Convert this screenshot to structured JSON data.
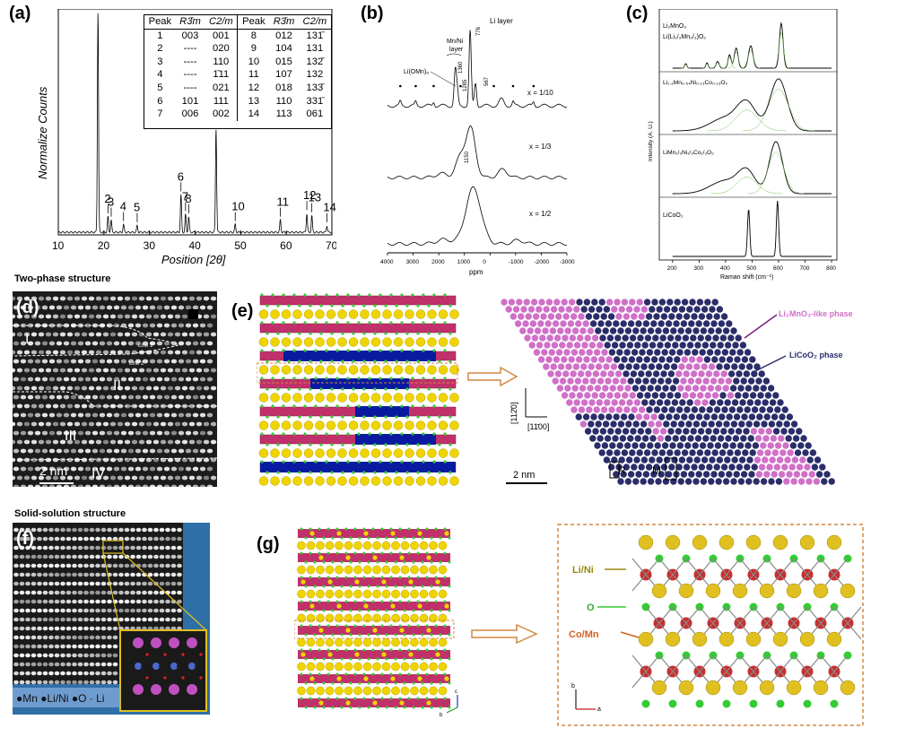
{
  "panel_labels": {
    "a": "(a)",
    "b": "(b)",
    "c": "(c)",
    "d": "(d)",
    "e": "(e)",
    "f": "(f)",
    "g": "(g)"
  },
  "section_titles": {
    "two_phase": "Two-phase structure",
    "solid_solution": "Solid-solution structure"
  },
  "colors": {
    "atom_yellow": "#f0d400",
    "octa_pink": "#c0306a",
    "octa_blue": "#0a1aa0",
    "oxygen_green": "#33cc33",
    "hex_navy": "#2b2d6a",
    "hex_pink": "#d070c8",
    "mn_red": "#c83030",
    "label_olive": "#9a8a10",
    "label_orange": "#d06020"
  },
  "chart_data": [
    {
      "type": "line",
      "panel": "a",
      "xlabel": "Position [2θ]",
      "ylabel": "Normalize Counts",
      "xlim": [
        10,
        70
      ],
      "xticks": [
        "10",
        "20",
        "30",
        "40",
        "50",
        "60",
        "70"
      ],
      "peaks": [
        {
          "label": "1",
          "x": 18.7,
          "y": 1.0
        },
        {
          "label": "2",
          "x": 20.9,
          "y": 0.07
        },
        {
          "label": "3",
          "x": 21.6,
          "y": 0.055
        },
        {
          "label": "4",
          "x": 24.3,
          "y": 0.035
        },
        {
          "label": "5",
          "x": 27.3,
          "y": 0.03
        },
        {
          "label": "6",
          "x": 36.9,
          "y": 0.17
        },
        {
          "label": "7",
          "x": 37.9,
          "y": 0.08
        },
        {
          "label": "8",
          "x": 38.6,
          "y": 0.07
        },
        {
          "label": "9",
          "x": 44.6,
          "y": 0.47
        },
        {
          "label": "10",
          "x": 48.8,
          "y": 0.035
        },
        {
          "label": "11",
          "x": 58.7,
          "y": 0.055
        },
        {
          "label": "12",
          "x": 64.5,
          "y": 0.085
        },
        {
          "label": "13",
          "x": 65.6,
          "y": 0.075
        },
        {
          "label": "14",
          "x": 68.9,
          "y": 0.03
        }
      ]
    },
    {
      "type": "line",
      "panel": "b",
      "xlabel": "ppm",
      "xlim": [
        4000,
        -3000
      ],
      "xticks": [
        "4000",
        "3000",
        "2000",
        "1000",
        "0",
        "-1000",
        "-2000",
        "-3000"
      ],
      "series": [
        {
          "name": "x = 1/10",
          "peaks": [
            {
              "x": 776,
              "y": 0.93
            },
            {
              "x": 1360,
              "y": 0.42
            },
            {
              "x": 1285,
              "y": 0.2
            },
            {
              "x": 567,
              "y": 0.28
            }
          ]
        },
        {
          "name": "x = 1/3",
          "peaks": [
            {
              "x": 750,
              "y": 0.72
            },
            {
              "x": 1150,
              "y": 0.3
            }
          ]
        },
        {
          "name": "x = 1/2",
          "peaks": [
            {
              "x": 650,
              "y": 0.78
            }
          ]
        }
      ],
      "annotations": [
        "Li layer",
        "Mn/Ni",
        "layer",
        "Li(OMn)₆",
        "776",
        "1360",
        "1285",
        "567",
        "1150"
      ]
    },
    {
      "type": "line",
      "panel": "c",
      "xlabel": "Raman shift (cm⁻¹)",
      "ylabel": "Intensity (A. U.)",
      "xlim": [
        150,
        820
      ],
      "xticks": [
        "200",
        "300",
        "400",
        "500",
        "600",
        "700",
        "800"
      ],
      "series": [
        {
          "name": "Li₂MnO₃ / Li(Li₁/₃Mn₂/₃)O₂",
          "peaks": [
            {
              "x": 610,
              "y": 1.0
            },
            {
              "x": 495,
              "y": 0.5
            },
            {
              "x": 440,
              "y": 0.45
            },
            {
              "x": 415,
              "y": 0.3
            },
            {
              "x": 370,
              "y": 0.15
            },
            {
              "x": 330,
              "y": 0.12
            },
            {
              "x": 250,
              "y": 0.1
            }
          ]
        },
        {
          "name": "Li₁.₂Mn₀.₅₄Ni₀.₁₃Co₀.₁₃O₂",
          "peaks": [
            {
              "x": 600,
              "y": 1.0
            },
            {
              "x": 480,
              "y": 0.5
            }
          ]
        },
        {
          "name": "LiMn₁/₃Ni₁/₃Co₁/₃O₂",
          "peaks": [
            {
              "x": 590,
              "y": 1.0
            },
            {
              "x": 480,
              "y": 0.4
            }
          ]
        },
        {
          "name": "LiCoO₂",
          "peaks": [
            {
              "x": 487,
              "y": 0.85
            },
            {
              "x": 596,
              "y": 1.0
            }
          ]
        }
      ]
    }
  ],
  "table_a": {
    "header": [
      "Peak",
      "R3̄m",
      "C2/m",
      "Peak",
      "R3̄m",
      "C2/m"
    ],
    "rows": [
      [
        "1",
        "003",
        "001",
        "8",
        "012",
        "131̄"
      ],
      [
        "2",
        "----",
        "020",
        "9",
        "104",
        "131"
      ],
      [
        "3",
        "----",
        "110",
        "10",
        "015",
        "132̄"
      ],
      [
        "4",
        "----",
        "1̄11",
        "11",
        "107",
        "132"
      ],
      [
        "5",
        "----",
        "021",
        "12",
        "018",
        "133̄"
      ],
      [
        "6",
        "101",
        "111",
        "13",
        "110",
        "331̄"
      ],
      [
        "7",
        "006",
        "002",
        "14",
        "113",
        "061"
      ]
    ]
  },
  "panel_b_labels": {
    "x1": "x = 1/10",
    "x2": "x = 1/3",
    "x3": "x = 1/2"
  },
  "panel_c_labels": {
    "s1a": "Li₂MnO₃",
    "s1b": "Li(Li₁/₃Mn₂/₃)O₂",
    "s2": "Li₁.₂Mn₀.₅₄Ni₀.₁₃Co₀.₁₃O₂",
    "s3": "LiMn₁/₃Ni₁/₃Co₁/₃O₂",
    "s4": "LiCoO₂"
  },
  "panel_d": {
    "regions": [
      "I",
      "II",
      "III",
      "IV"
    ],
    "line1": "Line 1",
    "line2": "Line 2",
    "scale": "2 nm"
  },
  "panel_e": {
    "legend_pink": "Li₂MnO₃-like phase",
    "legend_navy": "LiCoO₂ phase",
    "axis_v": "[112̄0]",
    "axis_h": "[11̄00]",
    "scale": "2 nm",
    "label_R": "R",
    "label_M": "M"
  },
  "panel_f": {
    "legend": "●Mn ●Li/Ni ●O · Li"
  },
  "panel_g": {
    "li_ni": "Li/Ni",
    "o": "O",
    "co_mn": "Co/Mn",
    "axis_c": "c",
    "axis_b": "b",
    "axis_a": "a"
  }
}
